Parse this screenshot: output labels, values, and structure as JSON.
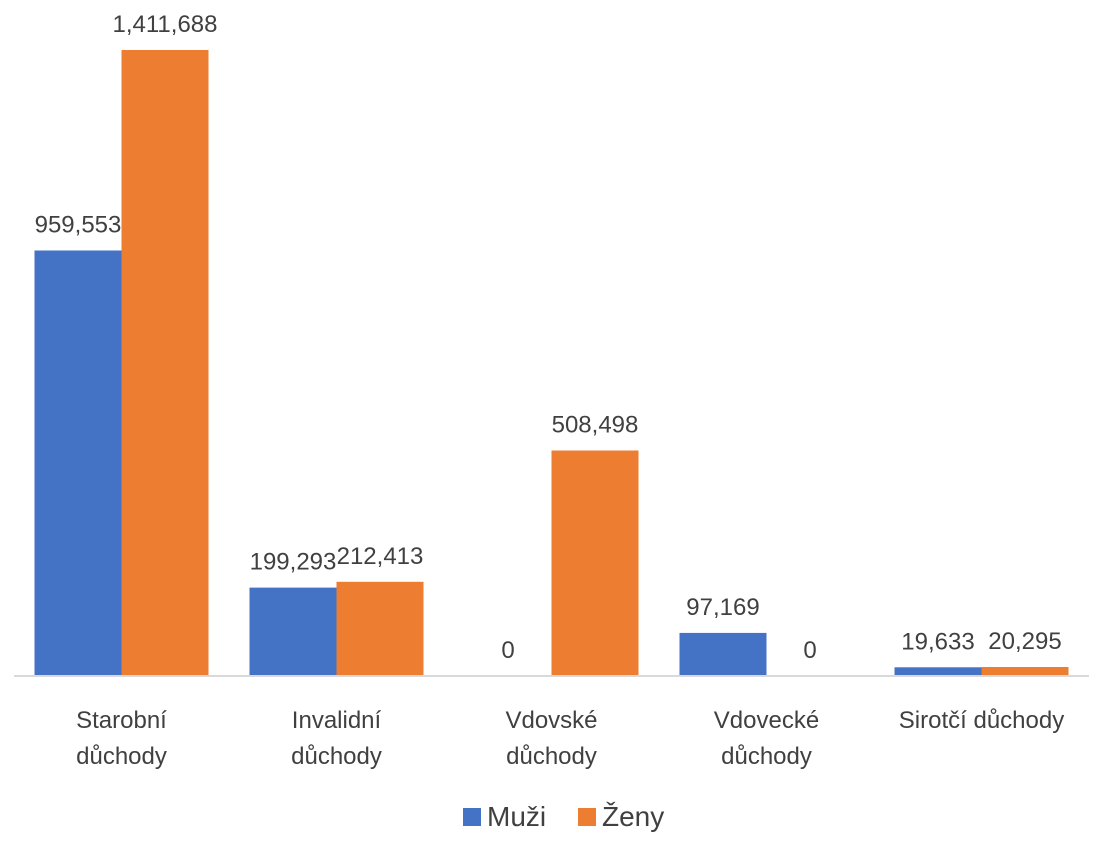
{
  "chart_data": {
    "type": "bar",
    "title": "",
    "xlabel": "",
    "ylabel": "",
    "categories": [
      [
        "Starobní",
        "důchody"
      ],
      [
        "Invalidní",
        "důchody"
      ],
      [
        "Vdovské",
        "důchody"
      ],
      [
        "Vdovecké",
        "důchody"
      ],
      [
        "Sirotčí důchody"
      ]
    ],
    "series": [
      {
        "name": "Muži",
        "color": "#4472C4",
        "values": [
          959553,
          199293,
          0,
          97169,
          19633
        ],
        "labels": [
          "959,553",
          "199,293",
          "0",
          "97,169",
          "19,633"
        ]
      },
      {
        "name": "Ženy",
        "color": "#ED7D31",
        "values": [
          1411688,
          212413,
          508498,
          0,
          20295
        ],
        "labels": [
          "1,411,688",
          "212,413",
          "508,498",
          "0",
          "20,295"
        ]
      }
    ],
    "ylim": [
      0,
      1411688
    ],
    "grid": false,
    "legend_position": "bottom"
  }
}
